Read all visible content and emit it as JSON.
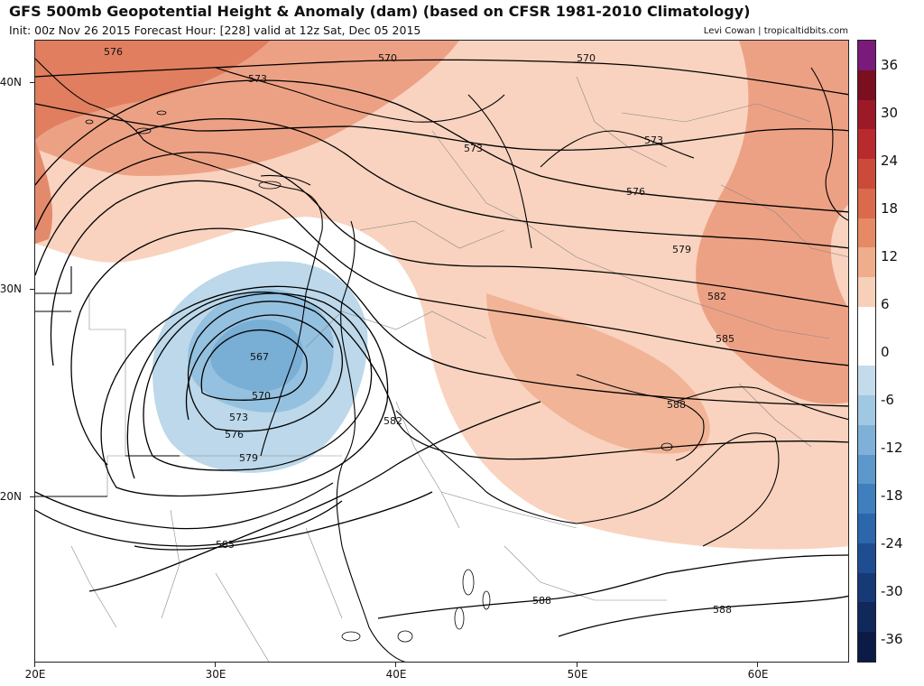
{
  "header": {
    "title": "GFS 500mb Geopotential Height & Anomaly (dam) (based on CFSR 1981-2010 Climatology)",
    "subtitle": "Init: 00z Nov 26 2015   Forecast Hour: [228]   valid at 12z Sat, Dec 05 2015",
    "credit": "Levi Cowan | tropicaltidbits.com"
  },
  "axes": {
    "lat_labels": [
      "40N",
      "30N",
      "20N"
    ],
    "lon_labels": [
      "20E",
      "30E",
      "40E",
      "50E",
      "60E"
    ]
  },
  "colorbar": {
    "labels": [
      "36",
      "30",
      "24",
      "18",
      "12",
      "6",
      "0",
      "-6",
      "-12",
      "-18",
      "-24",
      "-30",
      "-36"
    ],
    "colors": [
      "#7a1a7a",
      "#7a0f1f",
      "#9c1a28",
      "#b82a2e",
      "#cc4a3a",
      "#d96a4c",
      "#e68a66",
      "#efad8c",
      "#f7d0b9",
      "#ffffff",
      "#ffffff",
      "#c3dbea",
      "#a1c8e2",
      "#7fb1d8",
      "#5d98cc",
      "#3f7fbe",
      "#2c66ab",
      "#1f4d92",
      "#173976",
      "#10285a",
      "#0b1b45"
    ]
  },
  "contour_labels": {
    "c567": "567",
    "c570": "570",
    "c573": "573",
    "c576": "576",
    "c579": "579",
    "c582": "582",
    "c585": "585",
    "c588": "588"
  },
  "colors": {
    "anom_pos_strong": "#e07e5f",
    "anom_pos_mid": "#eda184",
    "anom_pos_weak": "#f9d3bf",
    "anom_neg_weak": "#bcd8ea",
    "anom_neg_mid": "#95c1e0",
    "anom_neg_strong": "#79aed5",
    "coast": "#000000",
    "border": "#888888"
  }
}
